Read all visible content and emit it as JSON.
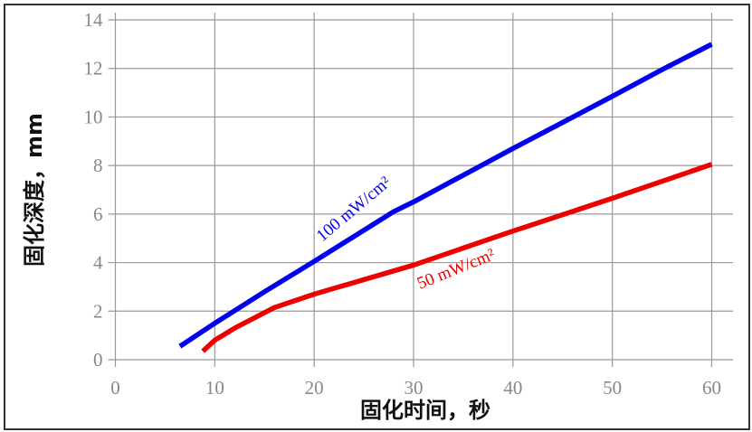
{
  "chart_data": {
    "type": "line",
    "xlabel": "固化时间，秒",
    "ylabel": "固化深度，mm",
    "xlim": [
      0,
      60
    ],
    "ylim": [
      0,
      14
    ],
    "xticks": [
      "0",
      "10",
      "20",
      "30",
      "40",
      "50",
      "60"
    ],
    "yticks": [
      "0",
      "2",
      "4",
      "6",
      "8",
      "10",
      "12",
      "14"
    ],
    "grid": true,
    "series": [
      {
        "name": "100 mW/cm²",
        "color": "#0000ee",
        "x": [
          6.5,
          10,
          15,
          20,
          28,
          30,
          40,
          50,
          55,
          60
        ],
        "y": [
          0.55,
          1.5,
          2.8,
          4.05,
          6.1,
          6.5,
          8.7,
          10.85,
          11.95,
          13.0
        ]
      },
      {
        "name": "50 mW/cm²",
        "color": "#ee0000",
        "x": [
          8.8,
          10,
          12,
          16,
          20,
          30,
          40,
          50,
          60
        ],
        "y": [
          0.35,
          0.8,
          1.3,
          2.15,
          2.7,
          3.9,
          5.3,
          6.65,
          8.05
        ]
      }
    ]
  }
}
